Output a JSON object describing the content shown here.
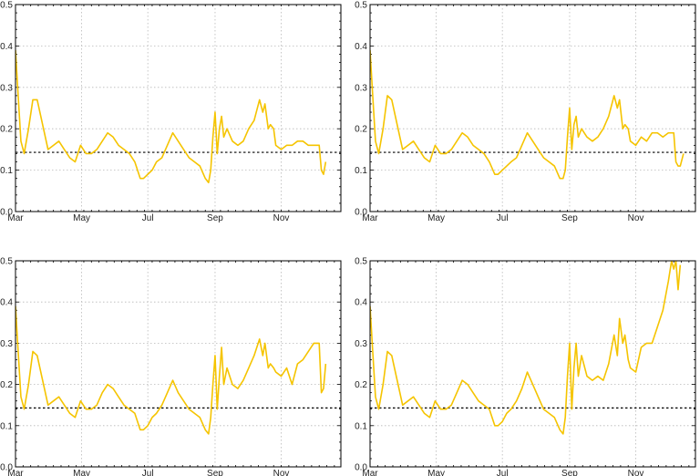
{
  "colors": {
    "series": "#F5C400",
    "reference": "#000000",
    "grid": "#b8b8b8"
  },
  "chart_data": [
    {
      "type": "line",
      "panel": "top-left",
      "xlabel": "",
      "ylabel": "",
      "ylim": [
        0,
        0.5
      ],
      "xlim": [
        0,
        300
      ],
      "yticks": [
        "0.0",
        "0.1",
        "0.2",
        "0.3",
        "0.4",
        "0.5"
      ],
      "xticks": [
        {
          "label": "Mar",
          "day": 0
        },
        {
          "label": "May",
          "day": 61
        },
        {
          "label": "Jul",
          "day": 122
        },
        {
          "label": "Sep",
          "day": 184
        },
        {
          "label": "Nov",
          "day": 245
        }
      ],
      "grid": true,
      "reference_line": 0.143,
      "series": [
        {
          "x": [
            0,
            2,
            5,
            8,
            12,
            16,
            20,
            25,
            30,
            35,
            40,
            45,
            50,
            55,
            60,
            65,
            70,
            75,
            80,
            85,
            90,
            95,
            100,
            105,
            110,
            115,
            118,
            122,
            126,
            130,
            135,
            140,
            145,
            150,
            155,
            160,
            165,
            170,
            175,
            178,
            180,
            182,
            184,
            186,
            188,
            190,
            192,
            195,
            200,
            205,
            210,
            215,
            220,
            225,
            228,
            230,
            233,
            235,
            238,
            240,
            245,
            250,
            255,
            260,
            265,
            270,
            275,
            280,
            282,
            284,
            286
          ],
          "y": [
            0.39,
            0.3,
            0.17,
            0.14,
            0.2,
            0.27,
            0.27,
            0.21,
            0.15,
            0.16,
            0.17,
            0.15,
            0.13,
            0.12,
            0.16,
            0.14,
            0.14,
            0.15,
            0.17,
            0.19,
            0.18,
            0.16,
            0.15,
            0.14,
            0.12,
            0.08,
            0.08,
            0.09,
            0.1,
            0.12,
            0.13,
            0.16,
            0.19,
            0.17,
            0.15,
            0.13,
            0.12,
            0.11,
            0.08,
            0.07,
            0.1,
            0.18,
            0.24,
            0.14,
            0.2,
            0.23,
            0.18,
            0.2,
            0.17,
            0.16,
            0.17,
            0.2,
            0.22,
            0.27,
            0.24,
            0.26,
            0.2,
            0.21,
            0.2,
            0.16,
            0.15,
            0.16,
            0.16,
            0.17,
            0.17,
            0.16,
            0.16,
            0.16,
            0.1,
            0.09,
            0.12
          ]
        }
      ]
    },
    {
      "type": "line",
      "panel": "top-right",
      "xlabel": "",
      "ylabel": "",
      "ylim": [
        0,
        0.5
      ],
      "xlim": [
        0,
        300
      ],
      "yticks": [
        "0.0",
        "0.1",
        "0.2",
        "0.3",
        "0.4",
        "0.5"
      ],
      "xticks": [
        {
          "label": "Mar",
          "day": 0
        },
        {
          "label": "May",
          "day": 61
        },
        {
          "label": "Jul",
          "day": 122
        },
        {
          "label": "Sep",
          "day": 184
        },
        {
          "label": "Nov",
          "day": 245
        }
      ],
      "grid": true,
      "reference_line": 0.143,
      "series": [
        {
          "x": [
            0,
            2,
            5,
            8,
            12,
            16,
            20,
            25,
            30,
            35,
            40,
            45,
            50,
            55,
            60,
            65,
            70,
            75,
            80,
            85,
            90,
            95,
            100,
            105,
            110,
            115,
            118,
            122,
            126,
            130,
            135,
            140,
            145,
            150,
            155,
            160,
            165,
            170,
            175,
            178,
            180,
            182,
            184,
            186,
            188,
            190,
            192,
            195,
            200,
            205,
            210,
            215,
            220,
            225,
            228,
            230,
            233,
            235,
            238,
            240,
            245,
            250,
            255,
            260,
            265,
            270,
            275,
            280,
            282,
            284,
            286,
            289
          ],
          "y": [
            0.39,
            0.3,
            0.17,
            0.14,
            0.2,
            0.28,
            0.27,
            0.21,
            0.15,
            0.16,
            0.17,
            0.15,
            0.13,
            0.12,
            0.16,
            0.14,
            0.14,
            0.15,
            0.17,
            0.19,
            0.18,
            0.16,
            0.15,
            0.14,
            0.12,
            0.09,
            0.09,
            0.1,
            0.11,
            0.12,
            0.13,
            0.16,
            0.19,
            0.17,
            0.15,
            0.13,
            0.12,
            0.11,
            0.08,
            0.08,
            0.1,
            0.18,
            0.25,
            0.15,
            0.21,
            0.23,
            0.18,
            0.2,
            0.18,
            0.17,
            0.18,
            0.2,
            0.23,
            0.28,
            0.25,
            0.27,
            0.2,
            0.21,
            0.2,
            0.17,
            0.16,
            0.18,
            0.17,
            0.19,
            0.19,
            0.18,
            0.19,
            0.19,
            0.12,
            0.11,
            0.11,
            0.14
          ]
        }
      ]
    },
    {
      "type": "line",
      "panel": "bottom-left",
      "xlabel": "",
      "ylabel": "",
      "ylim": [
        0,
        0.5
      ],
      "xlim": [
        0,
        300
      ],
      "yticks": [
        "0.0",
        "0.1",
        "0.2",
        "0.3",
        "0.4",
        "0.5"
      ],
      "xticks": [
        {
          "label": "Mar",
          "day": 0
        },
        {
          "label": "May",
          "day": 61
        },
        {
          "label": "Jul",
          "day": 122
        },
        {
          "label": "Sep",
          "day": 184
        },
        {
          "label": "Nov",
          "day": 245
        }
      ],
      "grid": true,
      "reference_line": 0.143,
      "series": [
        {
          "x": [
            0,
            2,
            5,
            8,
            12,
            16,
            20,
            25,
            30,
            35,
            40,
            45,
            50,
            55,
            60,
            65,
            70,
            75,
            80,
            85,
            90,
            95,
            100,
            105,
            110,
            115,
            118,
            122,
            126,
            130,
            135,
            140,
            145,
            150,
            155,
            160,
            165,
            170,
            175,
            178,
            180,
            182,
            184,
            186,
            188,
            190,
            192,
            195,
            200,
            205,
            210,
            215,
            220,
            225,
            228,
            230,
            233,
            235,
            238,
            240,
            245,
            250,
            255,
            260,
            265,
            270,
            275,
            280,
            282,
            284,
            286
          ],
          "y": [
            0.39,
            0.3,
            0.17,
            0.14,
            0.2,
            0.28,
            0.27,
            0.21,
            0.15,
            0.16,
            0.17,
            0.15,
            0.13,
            0.12,
            0.16,
            0.14,
            0.14,
            0.15,
            0.18,
            0.2,
            0.19,
            0.17,
            0.15,
            0.14,
            0.13,
            0.09,
            0.09,
            0.1,
            0.12,
            0.13,
            0.15,
            0.18,
            0.21,
            0.18,
            0.16,
            0.14,
            0.13,
            0.12,
            0.09,
            0.08,
            0.12,
            0.2,
            0.27,
            0.14,
            0.22,
            0.29,
            0.2,
            0.24,
            0.2,
            0.19,
            0.21,
            0.24,
            0.27,
            0.31,
            0.27,
            0.3,
            0.24,
            0.25,
            0.24,
            0.23,
            0.22,
            0.24,
            0.2,
            0.25,
            0.26,
            0.28,
            0.3,
            0.3,
            0.18,
            0.19,
            0.25
          ]
        }
      ]
    },
    {
      "type": "line",
      "panel": "bottom-right",
      "xlabel": "",
      "ylabel": "",
      "ylim": [
        0,
        0.5
      ],
      "xlim": [
        0,
        300
      ],
      "yticks": [
        "0.0",
        "0.1",
        "0.2",
        "0.3",
        "0.4",
        "0.5"
      ],
      "xticks": [
        {
          "label": "Mar",
          "day": 0
        },
        {
          "label": "May",
          "day": 61
        },
        {
          "label": "Jul",
          "day": 122
        },
        {
          "label": "Sep",
          "day": 184
        },
        {
          "label": "Nov",
          "day": 245
        }
      ],
      "grid": true,
      "reference_line": 0.143,
      "series": [
        {
          "x": [
            0,
            2,
            5,
            8,
            12,
            16,
            20,
            25,
            30,
            35,
            40,
            45,
            50,
            55,
            60,
            65,
            70,
            75,
            80,
            85,
            90,
            95,
            100,
            105,
            110,
            115,
            118,
            122,
            126,
            130,
            135,
            140,
            145,
            150,
            155,
            160,
            165,
            170,
            175,
            178,
            180,
            182,
            184,
            186,
            188,
            190,
            192,
            195,
            200,
            205,
            210,
            215,
            220,
            225,
            228,
            230,
            233,
            235,
            238,
            240,
            245,
            250,
            255,
            260,
            265,
            270,
            275,
            278,
            280,
            282,
            284,
            286
          ],
          "y": [
            0.39,
            0.3,
            0.17,
            0.14,
            0.2,
            0.28,
            0.27,
            0.21,
            0.15,
            0.16,
            0.17,
            0.15,
            0.13,
            0.12,
            0.16,
            0.14,
            0.14,
            0.15,
            0.18,
            0.21,
            0.2,
            0.18,
            0.16,
            0.15,
            0.14,
            0.1,
            0.1,
            0.11,
            0.13,
            0.14,
            0.16,
            0.19,
            0.23,
            0.2,
            0.17,
            0.14,
            0.13,
            0.12,
            0.09,
            0.08,
            0.12,
            0.22,
            0.3,
            0.14,
            0.24,
            0.3,
            0.22,
            0.27,
            0.22,
            0.21,
            0.22,
            0.21,
            0.25,
            0.32,
            0.27,
            0.36,
            0.3,
            0.32,
            0.26,
            0.24,
            0.23,
            0.29,
            0.3,
            0.3,
            0.34,
            0.38,
            0.45,
            0.5,
            0.48,
            0.5,
            0.43,
            0.49
          ]
        }
      ]
    }
  ]
}
